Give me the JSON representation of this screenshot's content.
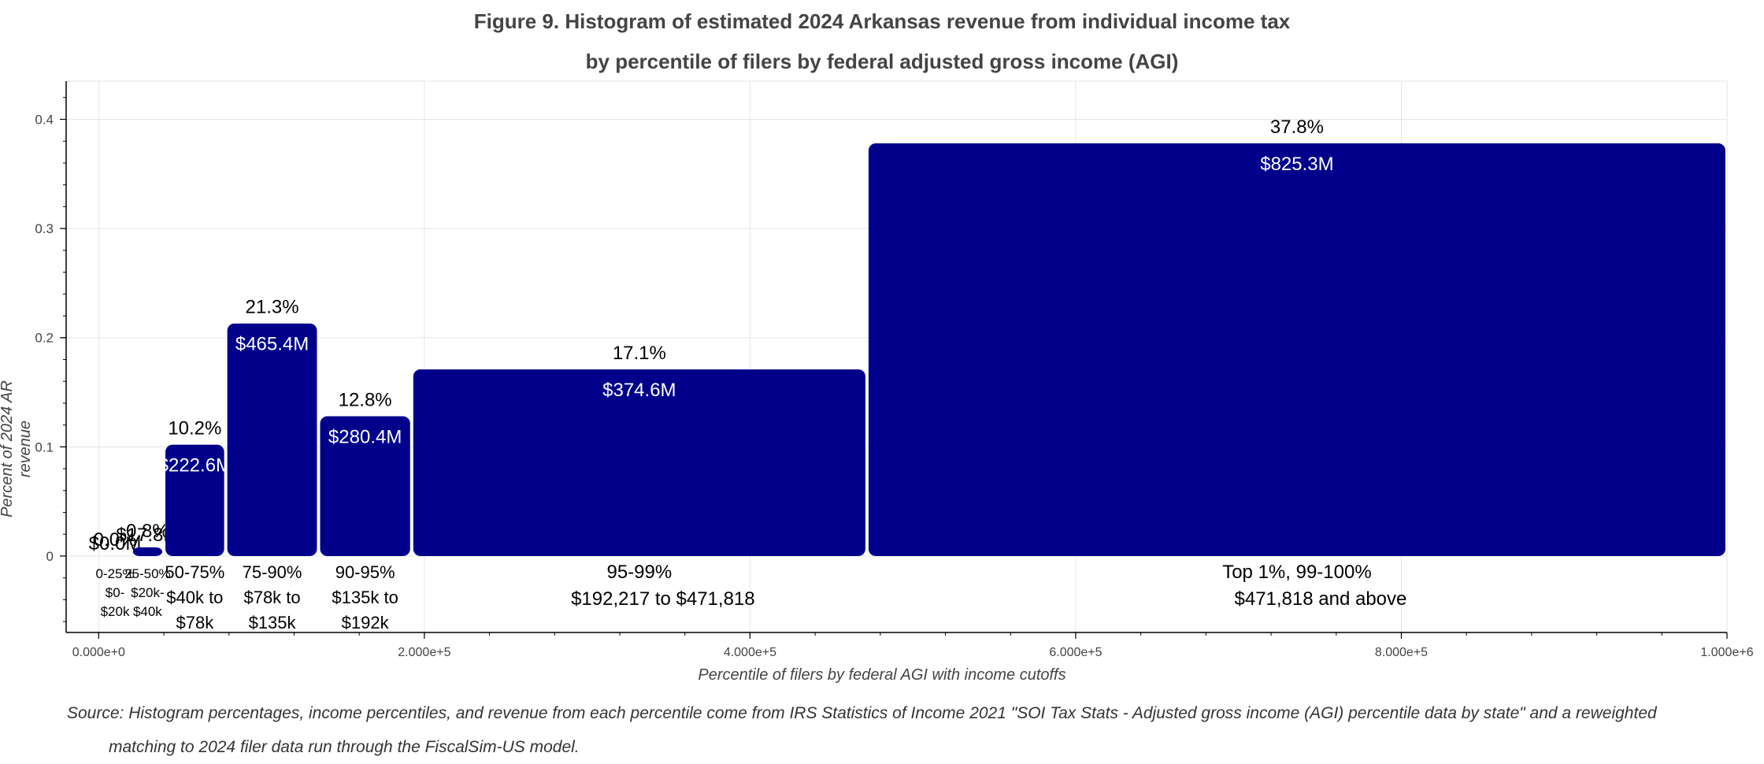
{
  "chart_data": {
    "type": "bar",
    "title": "Figure 9. Histogram of estimated 2024 Arkansas revenue from individual income tax",
    "subtitle": "by percentile of filers by federal adjusted gross income (AGI)",
    "xlabel": "Percentile of filers by federal AGI with income cutoffs",
    "ylabel": "Percent of 2024 AR revenue",
    "xlim": [
      -20000,
      1000000
    ],
    "ylim": [
      -0.07,
      0.435
    ],
    "x_ticks": [
      0,
      200000,
      400000,
      600000,
      800000,
      1000000
    ],
    "x_tick_labels": [
      "0.000e+0",
      "2.000e+5",
      "4.000e+5",
      "6.000e+5",
      "8.000e+5",
      "1.000e+6"
    ],
    "y_ticks": [
      0,
      0.1,
      0.2,
      0.3,
      0.4
    ],
    "y_tick_labels": [
      "0",
      "0.1",
      "0.2",
      "0.3",
      "0.4"
    ],
    "grid": true,
    "bar_color": "#00008b",
    "bins": [
      {
        "x0": 0,
        "x1": 20000,
        "value": 0.0,
        "pct_label": "0.0%",
        "revenue_label": "$0.0M",
        "range_lines": [
          "0-25%",
          "$0-",
          "$20k"
        ]
      },
      {
        "x0": 20000,
        "x1": 40000,
        "value": 0.008,
        "pct_label": "0.8%",
        "revenue_label": "$17.8M",
        "range_lines": [
          "25-50%",
          "$20k-",
          "$40k"
        ]
      },
      {
        "x0": 40000,
        "x1": 78000,
        "value": 0.102,
        "pct_label": "10.2%",
        "revenue_label": "$222.6M",
        "range_lines": [
          "50-75%",
          "$40k to",
          "$78k"
        ]
      },
      {
        "x0": 78000,
        "x1": 135000,
        "value": 0.213,
        "pct_label": "21.3%",
        "revenue_label": "$465.4M",
        "range_lines": [
          "75-90%",
          "$78k to",
          "$135k"
        ]
      },
      {
        "x0": 135000,
        "x1": 192217,
        "value": 0.128,
        "pct_label": "12.8%",
        "revenue_label": "$280.4M",
        "range_lines": [
          "90-95%",
          "$135k to",
          "$192k"
        ]
      },
      {
        "x0": 192217,
        "x1": 471818,
        "value": 0.171,
        "pct_label": "17.1%",
        "revenue_label": "$374.6M",
        "range_lines": [
          "95-99%",
          "$192,217 to $471,818"
        ]
      },
      {
        "x0": 471818,
        "x1": 1000000,
        "value": 0.378,
        "pct_label": "37.8%",
        "revenue_label": "$825.3M",
        "range_lines": [
          "Top 1%, 99-100%",
          "$471,818 and above"
        ]
      }
    ]
  },
  "source_line1": "Source: Histogram percentages, income percentiles, and revenue from each percentile come from IRS Statistics of Income 2021 \"SOI Tax Stats - Adjusted gross income (AGI) percentile data by state\" and a reweighted",
  "source_line2": "matching to 2024 filer data run through the FiscalSim-US model."
}
